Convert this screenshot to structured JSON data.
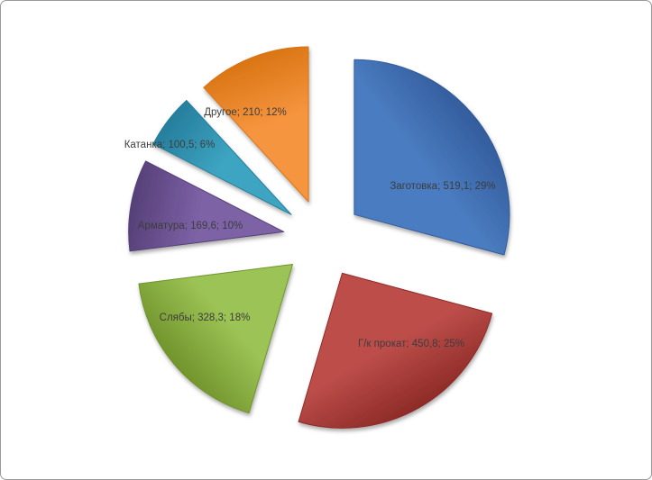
{
  "chart": {
    "title": "",
    "background_color": "#ffffff",
    "border_color": "#999999",
    "label_text_color": "#3d3d3d"
  },
  "chart_data": {
    "type": "pie",
    "exploded": true,
    "start_angle_deg": 0,
    "direction": "clockwise",
    "legend": "none",
    "grid": false,
    "total": 1778.3,
    "label_format": "name; value; percent",
    "slices": [
      {
        "name": "Заготовка",
        "value": 519.1,
        "value_label": "519,1",
        "percent": 29,
        "percent_label": "29%",
        "color": "#4f81bd",
        "color_light": "#4a7cc0",
        "color_dark": "#335c9c"
      },
      {
        "name": "Г/к прокат",
        "value": 450.8,
        "value_label": "450,8",
        "percent": 25,
        "percent_label": "25%",
        "color": "#c0504d",
        "color_light": "#bd4e4a",
        "color_dark": "#8e2b28"
      },
      {
        "name": "Слябы",
        "value": 328.3,
        "value_label": "328,3",
        "percent": 18,
        "percent_label": "18%",
        "color": "#9bbb59",
        "color_light": "#9cc355",
        "color_dark": "#71942c"
      },
      {
        "name": "Арматура",
        "value": 169.6,
        "value_label": "169,6",
        "percent": 10,
        "percent_label": "10%",
        "color": "#8064a2",
        "color_light": "#7d62a6",
        "color_dark": "#564078"
      },
      {
        "name": "Катанка",
        "value": 100.5,
        "value_label": "100,5",
        "percent": 6,
        "percent_label": "6%",
        "color": "#4bacc6",
        "color_light": "#3da4c1",
        "color_dark": "#257e9c"
      },
      {
        "name": "Другое",
        "value": 210,
        "value_label": "210",
        "percent": 12,
        "percent_label": "12%",
        "color": "#f79646",
        "color_light": "#f6953f",
        "color_dark": "#da7514"
      }
    ]
  }
}
